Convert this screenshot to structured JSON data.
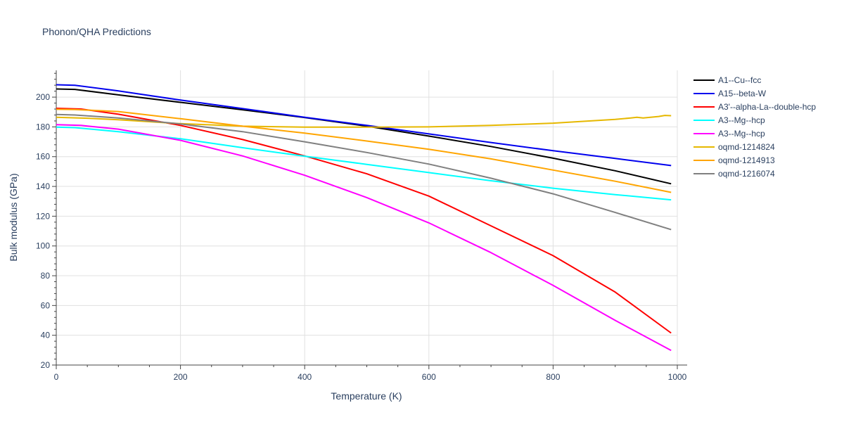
{
  "chart_data": {
    "type": "line",
    "title": "Phonon/QHA Predictions",
    "xlabel": "Temperature (K)",
    "ylabel": "Bulk modulus (GPa)",
    "xlim": [
      0,
      1000
    ],
    "ylim": [
      20,
      218
    ],
    "x_ticks": [
      0,
      200,
      400,
      600,
      800,
      1000
    ],
    "y_ticks": [
      20,
      40,
      60,
      80,
      100,
      120,
      140,
      160,
      180,
      200
    ],
    "grid": true,
    "legend_position": "right",
    "series": [
      {
        "name": "A1--Cu--fcc",
        "color": "#000000",
        "x": [
          0,
          30,
          100,
          200,
          300,
          400,
          500,
          600,
          700,
          800,
          900,
          990
        ],
        "y": [
          205.5,
          205.2,
          201.5,
          196.5,
          191.5,
          186.3,
          180.5,
          173.8,
          166.8,
          159.0,
          150.5,
          141.8
        ]
      },
      {
        "name": "A15--beta-W",
        "color": "#0000ee",
        "x": [
          0,
          30,
          100,
          200,
          300,
          400,
          500,
          600,
          700,
          800,
          900,
          990
        ],
        "y": [
          208.3,
          208.0,
          204.2,
          198.0,
          192.3,
          186.5,
          181.0,
          175.3,
          169.5,
          164.0,
          158.8,
          154.0
        ]
      },
      {
        "name": "A3'--alpha-La--double-hcp",
        "color": "#ff0000",
        "x": [
          0,
          40,
          100,
          200,
          300,
          400,
          500,
          600,
          700,
          800,
          900,
          990
        ],
        "y": [
          192.5,
          192.0,
          188.5,
          181.0,
          171.5,
          160.5,
          148.5,
          133.5,
          113.5,
          93.5,
          69.0,
          41.5
        ]
      },
      {
        "name": "A3--Mg--hcp",
        "color": "#00ffff",
        "x": [
          0,
          30,
          100,
          200,
          300,
          400,
          500,
          600,
          700,
          800,
          900,
          990
        ],
        "y": [
          179.8,
          179.5,
          176.8,
          172.0,
          166.0,
          160.3,
          154.8,
          149.3,
          143.8,
          138.8,
          134.5,
          131.0
        ]
      },
      {
        "name": "A3--Mg--hcp",
        "color": "#ff00ff",
        "x": [
          0,
          40,
          100,
          200,
          300,
          400,
          500,
          600,
          700,
          800,
          900,
          990
        ],
        "y": [
          181.5,
          181.0,
          178.5,
          171.0,
          160.5,
          147.5,
          132.5,
          115.5,
          95.5,
          73.5,
          50.0,
          29.8
        ]
      },
      {
        "name": "oqmd-1214824",
        "color": "#e6b800",
        "x": [
          0,
          50,
          100,
          200,
          300,
          400,
          500,
          600,
          700,
          800,
          900,
          925,
          935,
          945,
          970,
          980,
          990
        ],
        "y": [
          186.5,
          185.8,
          184.8,
          182.2,
          180.5,
          179.8,
          179.8,
          180.0,
          181.0,
          182.5,
          185.0,
          186.0,
          186.5,
          186.0,
          187.0,
          187.7,
          187.5
        ]
      },
      {
        "name": "oqmd-1214913",
        "color": "#ffa500",
        "x": [
          0,
          30,
          100,
          200,
          300,
          400,
          500,
          600,
          700,
          800,
          900,
          990
        ],
        "y": [
          191.8,
          191.7,
          190.3,
          185.5,
          180.5,
          175.8,
          170.5,
          165.0,
          158.5,
          151.0,
          143.5,
          136.0
        ]
      },
      {
        "name": "oqmd-1216074",
        "color": "#808080",
        "x": [
          0,
          30,
          100,
          200,
          300,
          400,
          500,
          600,
          700,
          800,
          900,
          990
        ],
        "y": [
          188.3,
          188.0,
          186.0,
          182.0,
          176.8,
          170.0,
          162.8,
          155.0,
          145.5,
          135.0,
          122.5,
          111.0
        ]
      }
    ]
  }
}
